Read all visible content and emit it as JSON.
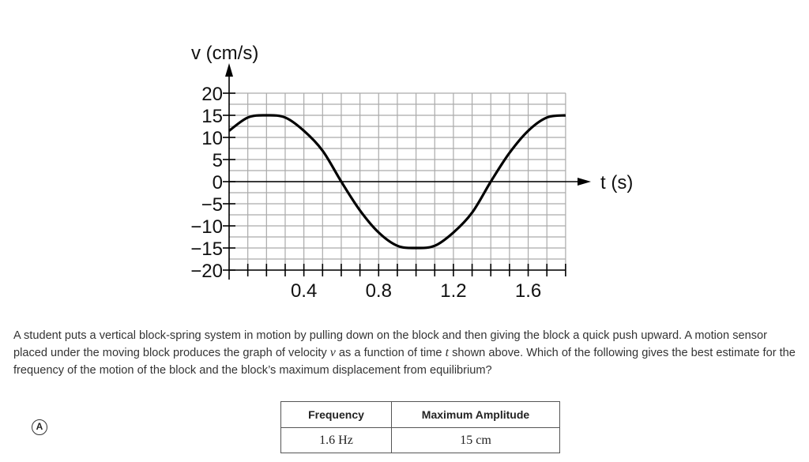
{
  "chart_data": {
    "type": "line",
    "xlabel": "t (s)",
    "ylabel": "v (cm/s)",
    "xlim": [
      0,
      1.8
    ],
    "ylim": [
      -20,
      20
    ],
    "x_ticks": [
      "0.4",
      "0.8",
      "1.2",
      "1.6"
    ],
    "y_ticks": [
      "20",
      "15",
      "10",
      "5",
      "0",
      "−5",
      "−10",
      "−15",
      "−20"
    ],
    "grid": true,
    "series": [
      {
        "x": [
          0,
          0.1,
          0.2,
          0.3,
          0.4,
          0.5,
          0.6,
          0.7,
          0.8,
          0.9,
          1.0,
          1.1,
          1.2,
          1.3,
          1.4,
          1.5,
          1.6,
          1.7,
          1.8
        ],
        "y": [
          11.5,
          14.5,
          15,
          14.5,
          11.5,
          7,
          0,
          -6.5,
          -11.5,
          -14.5,
          -15,
          -14.5,
          -11.5,
          -7,
          0,
          6.5,
          11.5,
          14.5,
          15
        ]
      }
    ]
  },
  "question": {
    "part1": "A student puts a vertical block-spring system in motion by pulling down on the block and then giving the block a quick push upward. A motion sensor placed under the moving block produces the graph of velocity ",
    "var_v": "v",
    "part2": " as a function of time ",
    "var_t": "t",
    "part3": " shown above. Which of the following gives the best estimate for the frequency of the motion of the block and the block’s maximum displacement from equilibrium?"
  },
  "choice": {
    "letter": "A",
    "headers": [
      "Frequency",
      "Maximum Amplitude"
    ],
    "values": [
      "1.6 Hz",
      "15 cm"
    ]
  }
}
